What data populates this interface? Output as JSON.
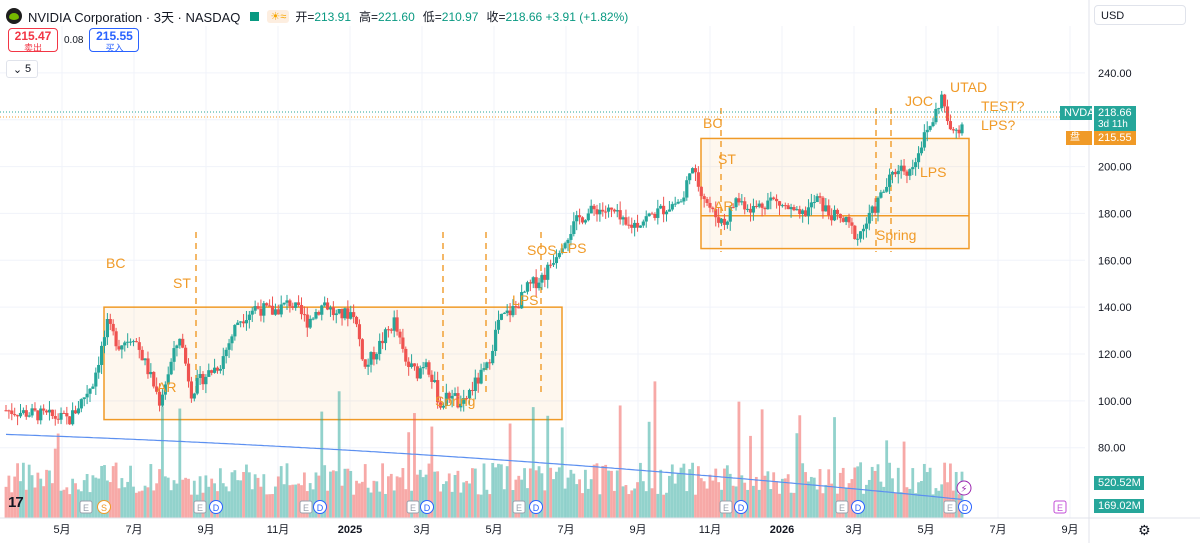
{
  "header": {
    "title": "NVIDIA Corporation · 3天 · NASDAQ",
    "ohlc": [
      {
        "label": "开=",
        "value": "213.91"
      },
      {
        "label": "高=",
        "value": "221.60"
      },
      {
        "label": "低=",
        "value": "210.97"
      },
      {
        "label": "收=",
        "value": "218.66 +3.91 (+1.82%)"
      }
    ],
    "market_icon": "☀≈"
  },
  "trade": {
    "sell_price": "215.47",
    "sell_label": "卖出",
    "spread": "0.08",
    "buy_price": "215.55",
    "buy_label": "买入"
  },
  "indicator_toggle": "5",
  "currency": "USD",
  "price_tags": {
    "symbol": "NVDA",
    "last": "218.66",
    "countdown": "3d 11h",
    "premarket_label": "盘前",
    "premarket": "215.55",
    "volume_main": "520.52M",
    "volume_ma": "169.02M"
  },
  "colors": {
    "up": "#26a69a",
    "down": "#ef5350",
    "box": "#f09a27",
    "ma": "#5b8ff0"
  },
  "chart_data": {
    "type": "candlestick",
    "y_ticks": [
      "80.00",
      "100.00",
      "120.00",
      "140.00",
      "160.00",
      "180.00",
      "200.00",
      "220.00",
      "240.00"
    ],
    "ylim": [
      50,
      260
    ],
    "x_ticks": [
      "5月",
      "7月",
      "9月",
      "11月",
      "2025",
      "3月",
      "5月",
      "7月",
      "9月",
      "11月",
      "2026",
      "3月",
      "5月",
      "7月",
      "9月"
    ],
    "wyckoff_labels": [
      "BC",
      "ST",
      "AR",
      "Spring",
      "SOS",
      "LPS",
      "LPS",
      "BC",
      "ST",
      "AR",
      "Spring",
      "LPS",
      "JOC",
      "UTAD",
      "TEST?",
      "LPS?"
    ],
    "ranges": [
      {
        "name": "range-2024",
        "top": 140,
        "bottom": 92
      },
      {
        "name": "range-2025",
        "top": 212,
        "bottom": 165,
        "mid": 179
      }
    ],
    "anchors": [
      {
        "d": 0,
        "p": 96
      },
      {
        "d": 12,
        "p": 94
      },
      {
        "d": 22,
        "p": 92
      },
      {
        "d": 30,
        "p": 108
      },
      {
        "d": 35,
        "p": 132
      },
      {
        "d": 39,
        "p": 124
      },
      {
        "d": 44,
        "p": 128
      },
      {
        "d": 50,
        "p": 110
      },
      {
        "d": 53,
        "p": 100
      },
      {
        "d": 56,
        "p": 112
      },
      {
        "d": 60,
        "p": 128
      },
      {
        "d": 64,
        "p": 104
      },
      {
        "d": 68,
        "p": 110
      },
      {
        "d": 74,
        "p": 116
      },
      {
        "d": 80,
        "p": 134
      },
      {
        "d": 86,
        "p": 140
      },
      {
        "d": 92,
        "p": 138
      },
      {
        "d": 98,
        "p": 142
      },
      {
        "d": 104,
        "p": 134
      },
      {
        "d": 110,
        "p": 142
      },
      {
        "d": 114,
        "p": 136
      },
      {
        "d": 120,
        "p": 138
      },
      {
        "d": 124,
        "p": 114
      },
      {
        "d": 128,
        "p": 122
      },
      {
        "d": 134,
        "p": 134
      },
      {
        "d": 138,
        "p": 116
      },
      {
        "d": 142,
        "p": 112
      },
      {
        "d": 145,
        "p": 118
      },
      {
        "d": 150,
        "p": 98
      },
      {
        "d": 154,
        "p": 104
      },
      {
        "d": 157,
        "p": 96
      },
      {
        "d": 160,
        "p": 104
      },
      {
        "d": 166,
        "p": 114
      },
      {
        "d": 170,
        "p": 134
      },
      {
        "d": 176,
        "p": 140
      },
      {
        "d": 180,
        "p": 148
      },
      {
        "d": 186,
        "p": 154
      },
      {
        "d": 192,
        "p": 168
      },
      {
        "d": 198,
        "p": 178
      },
      {
        "d": 204,
        "p": 182
      },
      {
        "d": 210,
        "p": 180
      },
      {
        "d": 214,
        "p": 174
      },
      {
        "d": 218,
        "p": 176
      },
      {
        "d": 224,
        "p": 180
      },
      {
        "d": 230,
        "p": 184
      },
      {
        "d": 234,
        "p": 186
      },
      {
        "d": 236,
        "p": 200
      },
      {
        "d": 240,
        "p": 190
      },
      {
        "d": 244,
        "p": 180
      },
      {
        "d": 248,
        "p": 176
      },
      {
        "d": 252,
        "p": 186
      },
      {
        "d": 258,
        "p": 182
      },
      {
        "d": 264,
        "p": 186
      },
      {
        "d": 270,
        "p": 182
      },
      {
        "d": 274,
        "p": 178
      },
      {
        "d": 280,
        "p": 186
      },
      {
        "d": 284,
        "p": 180
      },
      {
        "d": 290,
        "p": 176
      },
      {
        "d": 294,
        "p": 170
      },
      {
        "d": 298,
        "p": 178
      },
      {
        "d": 304,
        "p": 192
      },
      {
        "d": 308,
        "p": 200
      },
      {
        "d": 312,
        "p": 198
      },
      {
        "d": 316,
        "p": 210
      },
      {
        "d": 320,
        "p": 220
      },
      {
        "d": 323,
        "p": 230
      },
      {
        "d": 326,
        "p": 214
      },
      {
        "d": 330,
        "p": 218
      }
    ],
    "volume": {
      "ylim_main": [
        0,
        1400
      ],
      "ma_start": 900,
      "ma_end": 200
    }
  }
}
